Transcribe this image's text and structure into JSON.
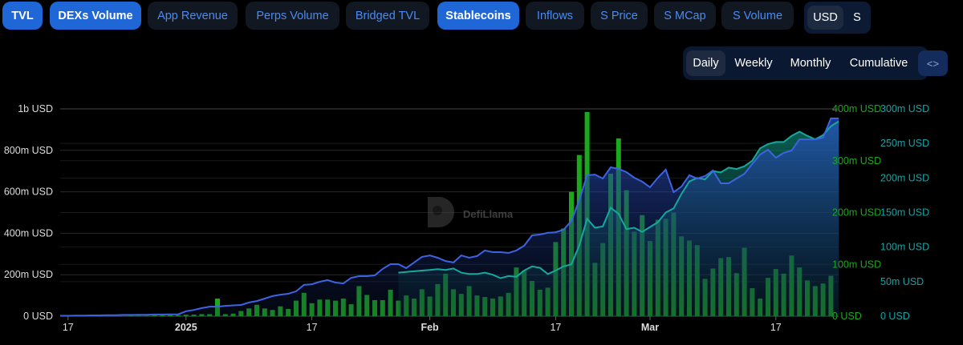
{
  "tabs": [
    {
      "label": "TVL",
      "active": true
    },
    {
      "label": "DEXs Volume",
      "active": true
    },
    {
      "label": "App Revenue",
      "active": false
    },
    {
      "label": "Perps Volume",
      "active": false
    },
    {
      "label": "Bridged TVL",
      "active": false
    },
    {
      "label": "Stablecoins",
      "active": true
    },
    {
      "label": "Inflows",
      "active": false
    },
    {
      "label": "S Price",
      "active": false
    },
    {
      "label": "S MCap",
      "active": false
    },
    {
      "label": "S Volume",
      "active": false
    }
  ],
  "currency": {
    "options": [
      "USD",
      "S"
    ],
    "selected": "USD"
  },
  "period": {
    "options": [
      "Daily",
      "Weekly",
      "Monthly",
      "Cumulative"
    ],
    "selected": "Daily",
    "embed_icon": "code-icon",
    "embed_label": "<>"
  },
  "watermark": "DefiLlama",
  "colors": {
    "tvl": "#3d63e3",
    "stablecoins": "#16a89c",
    "dex_volume": "#1ca81c",
    "active_tab": "#1f66d6",
    "inactive_tab_text": "#4b8af0"
  },
  "chart_data": {
    "type": "bar+line",
    "x_ticks": [
      {
        "label": "17",
        "date": "2024-12-17"
      },
      {
        "label": "2025",
        "date": "2025-01-01",
        "bold": true
      },
      {
        "label": "17",
        "date": "2025-01-17"
      },
      {
        "label": "Feb",
        "date": "2025-02-01",
        "bold": true
      },
      {
        "label": "17",
        "date": "2025-02-17"
      },
      {
        "label": "Mar",
        "date": "2025-03-01",
        "bold": true
      },
      {
        "label": "17",
        "date": "2025-03-17"
      }
    ],
    "axes": {
      "left": {
        "series": "TVL",
        "range": [
          0,
          1000000000
        ],
        "ticks": [
          "0 USD",
          "200m USD",
          "400m USD",
          "600m USD",
          "800m USD",
          "1b USD"
        ]
      },
      "right1": {
        "series": "DEXs Volume",
        "range": [
          0,
          400000000
        ],
        "ticks": [
          "0 USD",
          "100m USD",
          "200m USD",
          "300m USD",
          "400m USD"
        ]
      },
      "right2": {
        "series": "Stablecoins",
        "range": [
          0,
          300000000
        ],
        "ticks": [
          "0 USD",
          "50m USD",
          "100m USD",
          "150m USD",
          "200m USD",
          "250m USD",
          "300m USD"
        ]
      }
    },
    "grid": true,
    "unit": "millions USD",
    "dates": [
      "2024-12-16",
      "2024-12-17",
      "2024-12-18",
      "2024-12-19",
      "2024-12-20",
      "2024-12-21",
      "2024-12-22",
      "2024-12-23",
      "2024-12-24",
      "2024-12-25",
      "2024-12-26",
      "2024-12-27",
      "2024-12-28",
      "2024-12-29",
      "2024-12-30",
      "2024-12-31",
      "2025-01-01",
      "2025-01-02",
      "2025-01-03",
      "2025-01-04",
      "2025-01-05",
      "2025-01-06",
      "2025-01-07",
      "2025-01-08",
      "2025-01-09",
      "2025-01-10",
      "2025-01-11",
      "2025-01-12",
      "2025-01-13",
      "2025-01-14",
      "2025-01-15",
      "2025-01-16",
      "2025-01-17",
      "2025-01-18",
      "2025-01-19",
      "2025-01-20",
      "2025-01-21",
      "2025-01-22",
      "2025-01-23",
      "2025-01-24",
      "2025-01-25",
      "2025-01-26",
      "2025-01-27",
      "2025-01-28",
      "2025-01-29",
      "2025-01-30",
      "2025-01-31",
      "2025-02-01",
      "2025-02-02",
      "2025-02-03",
      "2025-02-04",
      "2025-02-05",
      "2025-02-06",
      "2025-02-07",
      "2025-02-08",
      "2025-02-09",
      "2025-02-10",
      "2025-02-11",
      "2025-02-12",
      "2025-02-13",
      "2025-02-14",
      "2025-02-15",
      "2025-02-16",
      "2025-02-17",
      "2025-02-18",
      "2025-02-19",
      "2025-02-20",
      "2025-02-21",
      "2025-02-22",
      "2025-02-23",
      "2025-02-24",
      "2025-02-25",
      "2025-02-26",
      "2025-02-27",
      "2025-02-28",
      "2025-03-01",
      "2025-03-02",
      "2025-03-03",
      "2025-03-04",
      "2025-03-05",
      "2025-03-06",
      "2025-03-07",
      "2025-03-08",
      "2025-03-09",
      "2025-03-10",
      "2025-03-11",
      "2025-03-12",
      "2025-03-13",
      "2025-03-14",
      "2025-03-15",
      "2025-03-16",
      "2025-03-17",
      "2025-03-18",
      "2025-03-19",
      "2025-03-20",
      "2025-03-21",
      "2025-03-22",
      "2025-03-23",
      "2025-03-24",
      "2025-03-25"
    ],
    "series": [
      {
        "name": "TVL",
        "kind": "area",
        "axis": "left",
        "values": [
          2,
          2,
          3,
          3,
          4,
          4,
          5,
          5,
          6,
          6,
          7,
          7,
          8,
          8,
          9,
          9,
          24,
          30,
          39,
          46,
          46,
          50,
          52,
          54,
          66,
          73,
          85,
          97,
          104,
          108,
          120,
          151,
          154,
          166,
          174,
          162,
          158,
          185,
          193,
          193,
          197,
          228,
          251,
          251,
          232,
          259,
          286,
          293,
          282,
          266,
          259,
          293,
          282,
          290,
          317,
          309,
          309,
          305,
          317,
          340,
          390,
          394,
          402,
          405,
          417,
          459,
          560,
          680,
          683,
          664,
          718,
          711,
          695,
          668,
          649,
          622,
          668,
          707,
          598,
          625,
          680,
          664,
          676,
          703,
          641,
          641,
          664,
          687,
          734,
          780,
          803,
          764,
          788,
          799,
          853,
          853,
          853,
          861,
          954,
          954
        ]
      },
      {
        "name": "DEXs Volume",
        "kind": "bar",
        "axis": "right1",
        "values": [
          0,
          0,
          0,
          0,
          0,
          0,
          0,
          0,
          0,
          1,
          1,
          1,
          2,
          2,
          2,
          2,
          3,
          3,
          4,
          4,
          34,
          4,
          5,
          10,
          15,
          22,
          15,
          12,
          19,
          14,
          30,
          45,
          25,
          32,
          32,
          30,
          34,
          23,
          58,
          41,
          31,
          31,
          51,
          30,
          40,
          34,
          52,
          38,
          62,
          82,
          52,
          43,
          58,
          40,
          37,
          34,
          38,
          45,
          94,
          88,
          68,
          51,
          55,
          143,
          169,
          240,
          311,
          394,
          103,
          141,
          275,
          343,
          243,
          163,
          195,
          145,
          186,
          188,
          200,
          154,
          146,
          137,
          72,
          92,
          112,
          114,
          83,
          132,
          54,
          34,
          74,
          91,
          82,
          117,
          94,
          69,
          58,
          63,
          78,
          null
        ]
      },
      {
        "name": "Stablecoins",
        "kind": "area",
        "axis": "right2",
        "values": [
          null,
          null,
          null,
          null,
          null,
          null,
          null,
          null,
          null,
          null,
          null,
          null,
          null,
          null,
          null,
          null,
          null,
          null,
          null,
          null,
          null,
          null,
          null,
          null,
          null,
          null,
          null,
          null,
          null,
          null,
          null,
          null,
          null,
          null,
          null,
          null,
          null,
          null,
          null,
          null,
          null,
          null,
          null,
          63,
          64,
          65,
          66,
          67,
          68,
          67,
          69,
          63,
          61,
          61,
          63,
          60,
          55,
          58,
          57,
          66,
          72,
          70,
          61,
          66,
          72,
          75,
          102,
          141,
          128,
          130,
          157,
          148,
          126,
          128,
          122,
          129,
          136,
          150,
          156,
          177,
          195,
          200,
          198,
          210,
          208,
          215,
          213,
          217,
          225,
          243,
          249,
          252,
          252,
          261,
          267,
          261,
          256,
          262,
          275,
          282
        ]
      }
    ]
  }
}
